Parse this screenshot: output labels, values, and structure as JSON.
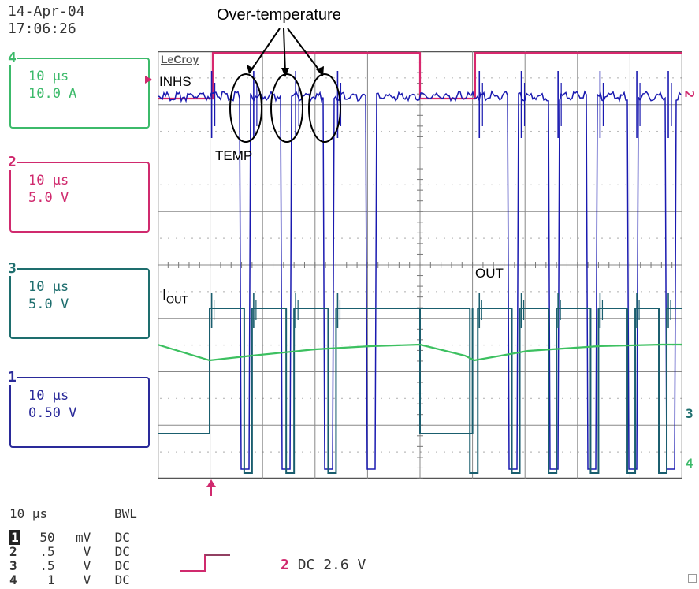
{
  "header": {
    "date": "14-Apr-04",
    "time": "17:06:26"
  },
  "channels": [
    {
      "num": "4",
      "timebase": "10 µs",
      "scale": "10.0 A",
      "color": "#3cba6a"
    },
    {
      "num": "2",
      "timebase": "10 µs",
      "scale": "5.0 V",
      "color": "#d02a6e"
    },
    {
      "num": "3",
      "timebase": "10 µs",
      "scale": "5.0 V",
      "color": "#1e6e6e"
    },
    {
      "num": "1",
      "timebase": "10 µs",
      "scale": "0.50 V",
      "color": "#2a2a9a"
    }
  ],
  "scope": {
    "logo": "LeCroy",
    "timebase": "10 µs",
    "bwl": "BWL",
    "coupling": [
      {
        "num": "1",
        "volts": "50",
        "unit": "mV",
        "dc": "DC"
      },
      {
        "num": "2",
        "volts": ".5",
        "unit": "V",
        "dc": "DC"
      },
      {
        "num": "3",
        "volts": ".5",
        "unit": "V",
        "dc": "DC"
      },
      {
        "num": "4",
        "volts": "1",
        "unit": "V",
        "dc": "DC"
      }
    ],
    "trigger": {
      "channel": "2",
      "text": "DC 2.6 V"
    },
    "right_markers": [
      "2",
      "3",
      "4"
    ]
  },
  "annotations": {
    "over_temp": "Over-temperature",
    "inhs": "INHS",
    "temp": "TEMP",
    "iout_main": "I",
    "iout_sub": "OUT",
    "out": "OUT"
  },
  "chart_data": {
    "type": "line",
    "grid": true,
    "x_divisions": 10,
    "y_divisions": 8,
    "series": [
      {
        "name": "INHS",
        "color": "#d8286e",
        "description_levels": {
          "low_div": 7.6,
          "high_div": 8.0
        },
        "step_x_div": [
          1.05,
          6.05
        ]
      },
      {
        "name": "TEMP",
        "color": "#1a1ab0",
        "pulse_x_div": [
          1.0,
          1.8,
          2.6,
          3.4,
          6.1,
          6.9,
          7.6,
          8.4,
          9.1,
          9.7
        ]
      },
      {
        "name": "OUT",
        "color": "#1a5e6e",
        "pulse_x_div": [
          1.0,
          1.8,
          2.6,
          3.4,
          6.1,
          6.9,
          7.6,
          8.4,
          9.1,
          9.7
        ]
      },
      {
        "name": "IOUT",
        "color": "#3cc060"
      }
    ]
  }
}
